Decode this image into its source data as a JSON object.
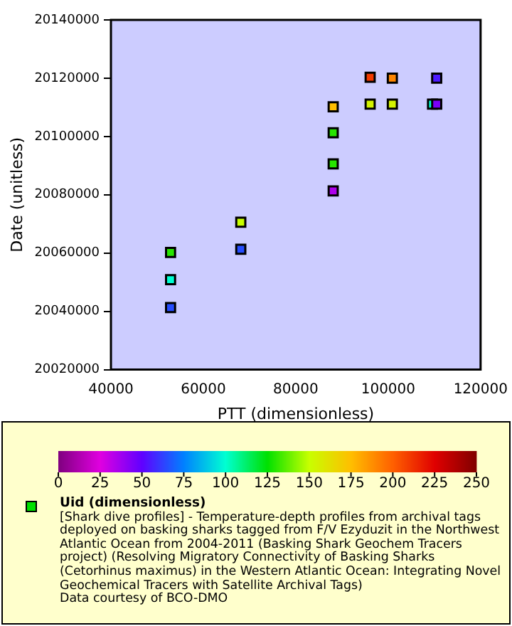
{
  "chart_data": {
    "type": "scatter",
    "xlabel": "PTT (dimensionless)",
    "ylabel": "Date (unitless)",
    "clabel": "Uid (dimensionless)",
    "x": [
      52900,
      52900,
      52900,
      68100,
      68100,
      88100,
      88100,
      88100,
      88100,
      96100,
      96100,
      100900,
      100900,
      110500,
      109600,
      110500
    ],
    "values": [
      20041300,
      20050900,
      20060200,
      20061300,
      20070600,
      20081300,
      20090600,
      20101300,
      20110200,
      20120300,
      20111100,
      20120000,
      20111100,
      20120000,
      20111100,
      20111100
    ],
    "cvalues": [
      65,
      100,
      130,
      65,
      150,
      35,
      130,
      130,
      175,
      210,
      155,
      190,
      155,
      55,
      100,
      45
    ],
    "xlim": [
      40000,
      120000
    ],
    "xticks": [
      40000,
      60000,
      80000,
      100000,
      120000
    ],
    "ylim": [
      20020000,
      20140000
    ],
    "yticks": [
      20020000,
      20040000,
      20060000,
      20080000,
      20100000,
      20120000,
      20140000
    ],
    "clim": [
      0,
      250
    ],
    "cticks": [
      0,
      25,
      50,
      75,
      100,
      125,
      150,
      175,
      200,
      225,
      250
    ],
    "marker": "square",
    "grid": false,
    "annotations": [
      "[Shark dive profiles] - Temperature-depth profiles from archival tags deployed on basking sharks tagged from F/V Ezyduzit in the Northwest Atlantic Ocean from 2004-2011 (Basking Shark Geochem Tracers project) (Resolving Migratory Connectivity of Basking Sharks (Cetorhinus maximus) in the Western Atlantic Ocean: Integrating Novel Geochemical Tracers with Satellite Archival Tags)",
      "Data courtesy of BCO-DMO"
    ]
  }
}
